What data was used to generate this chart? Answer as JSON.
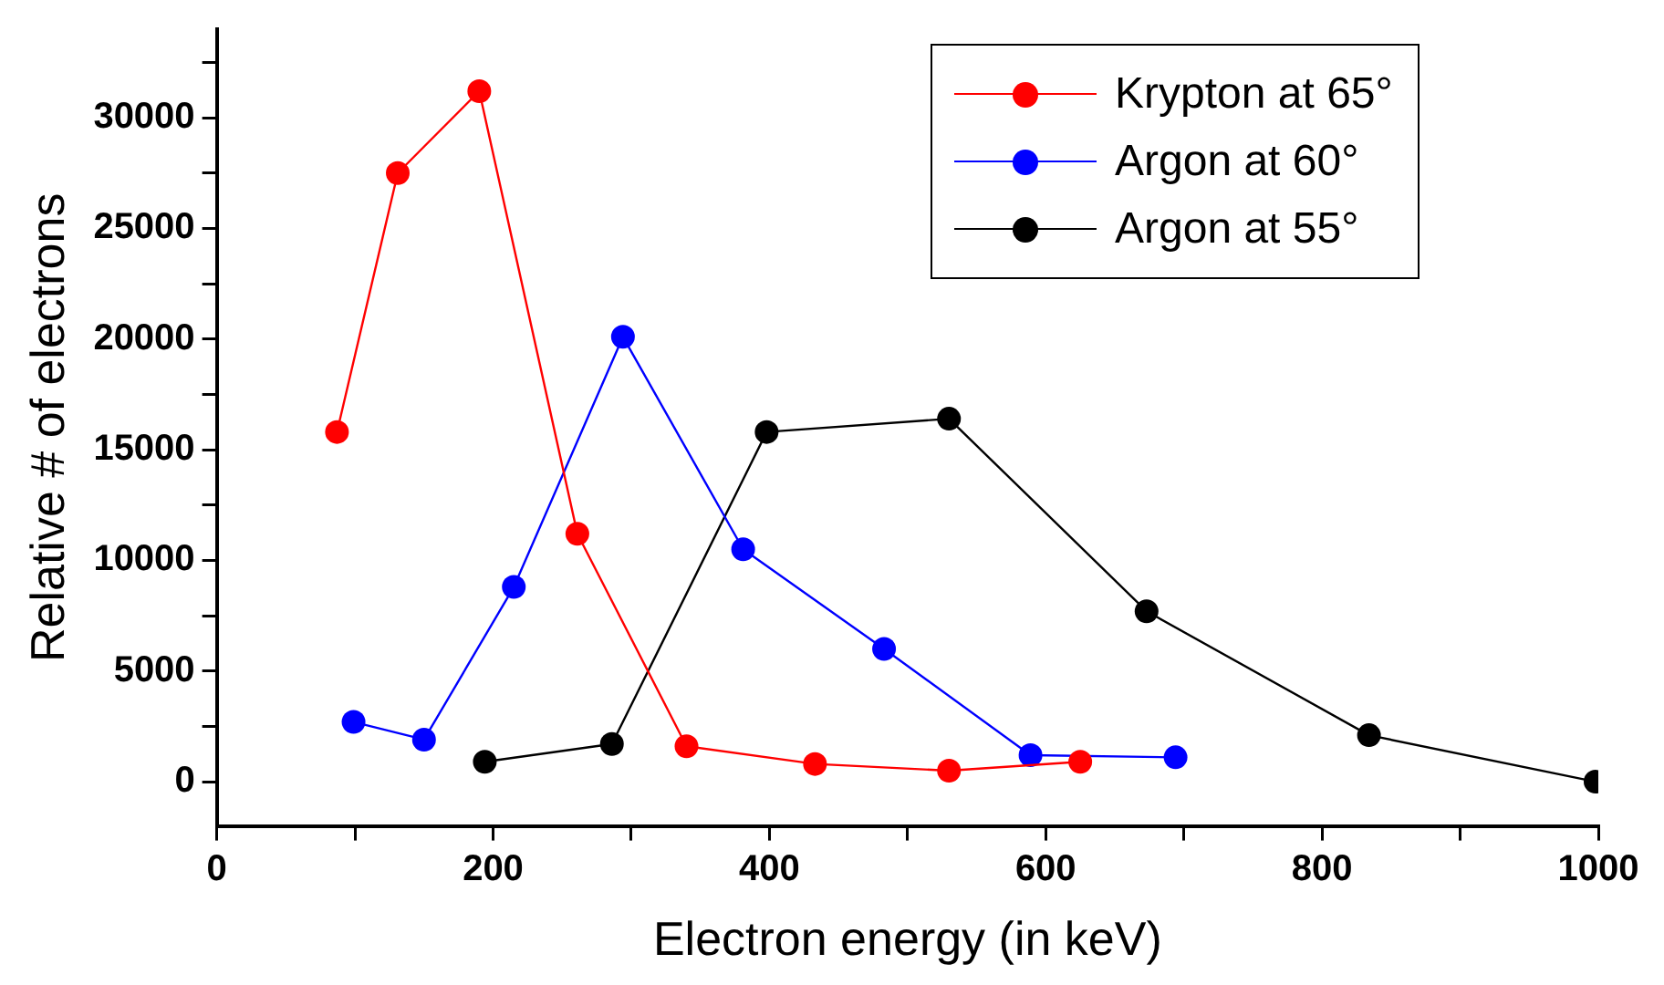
{
  "chart_data": {
    "type": "line",
    "xlabel": "Electron energy (in keV)",
    "ylabel": "Relative # of electrons",
    "xlim": [
      0,
      1000
    ],
    "ylim": [
      -2000,
      34000
    ],
    "xticks": [
      0,
      {
        "value": 100,
        "label": null
      },
      200,
      {
        "value": 300,
        "label": null
      },
      400,
      {
        "value": 500,
        "label": null
      },
      600,
      {
        "value": 700,
        "label": null
      },
      800,
      {
        "value": 900,
        "label": null
      },
      1000
    ],
    "yticks": [
      0,
      {
        "value": 2500,
        "label": null
      },
      5000,
      {
        "value": 7500,
        "label": null
      },
      10000,
      {
        "value": 12500,
        "label": null
      },
      15000,
      {
        "value": 17500,
        "label": null
      },
      20000,
      {
        "value": 22500,
        "label": null
      },
      25000,
      {
        "value": 27500,
        "label": null
      },
      30000,
      {
        "value": 32500,
        "label": null
      }
    ],
    "grid": false,
    "legend": "top right",
    "marker": "circle",
    "line_style": "solid",
    "series": [
      {
        "name": "Krypton at 65°",
        "color": "#ff0000",
        "x": [
          87,
          131,
          190,
          261,
          340,
          433,
          530,
          625
        ],
        "values": [
          15800,
          27500,
          31200,
          11200,
          1600,
          800,
          500,
          900
        ]
      },
      {
        "name": "Argon at 60°",
        "color": "#0000ff",
        "x": [
          99,
          150,
          215,
          294,
          381,
          483,
          589,
          694
        ],
        "values": [
          2700,
          1900,
          8800,
          20100,
          10500,
          6000,
          1200,
          1100
        ]
      },
      {
        "name": "Argon at 55°",
        "color": "#000000",
        "x": [
          194,
          286,
          398,
          530,
          673,
          834,
          998
        ],
        "values": [
          900,
          1700,
          15800,
          16400,
          7700,
          2100,
          0
        ]
      }
    ]
  }
}
